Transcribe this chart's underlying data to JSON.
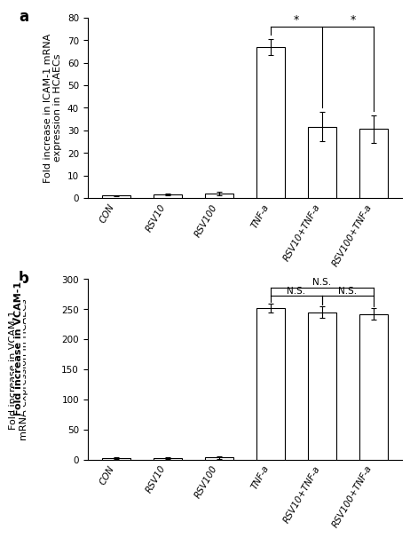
{
  "panel_a": {
    "categories": [
      "CON",
      "RSV10",
      "RSV100",
      "TNF-a",
      "RSV10+TNF-a",
      "RSV100+TNF-a"
    ],
    "values": [
      1.0,
      1.5,
      2.0,
      67.0,
      31.5,
      30.5
    ],
    "errors": [
      0.3,
      0.5,
      0.7,
      3.5,
      6.5,
      6.0
    ],
    "ylabel_line1": "Fold increase in ICAM-1 mRNA",
    "ylabel_line2": "expression in HCAECs",
    "ylim": [
      0,
      80
    ],
    "yticks": [
      0,
      10,
      20,
      30,
      40,
      50,
      60,
      70,
      80
    ],
    "panel_label": "a"
  },
  "panel_b": {
    "categories": [
      "CON",
      "RSV10",
      "RSV100",
      "TNF-a",
      "RSV10+TNF-a",
      "RSV100+TNF-a"
    ],
    "values": [
      2.0,
      2.0,
      3.0,
      252.0,
      245.0,
      242.0
    ],
    "errors": [
      1.0,
      1.0,
      2.0,
      7.0,
      10.0,
      10.0
    ],
    "ylabel_bold": "Fold increase in VCAM-1",
    "ylabel_normal": "mRNA expression in HCAECs",
    "ylim": [
      0,
      300
    ],
    "yticks": [
      0,
      50,
      100,
      150,
      200,
      250,
      300
    ],
    "panel_label": "b"
  },
  "bar_color": "#ffffff",
  "bar_edgecolor": "#000000",
  "bar_width": 0.55,
  "error_color": "#000000",
  "background_color": "#ffffff",
  "tick_label_fontsize": 7.5,
  "axis_label_fontsize": 8,
  "panel_label_fontsize": 12
}
